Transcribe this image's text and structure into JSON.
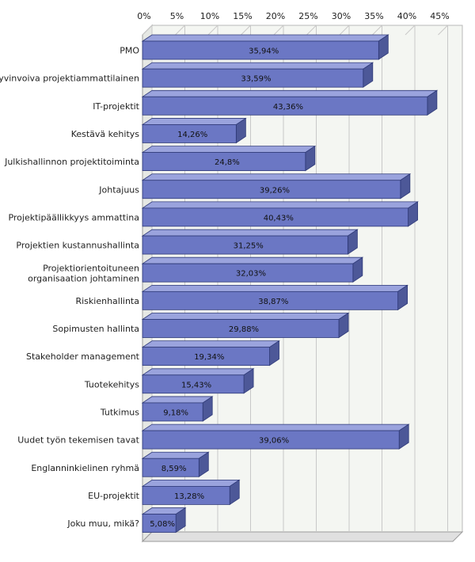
{
  "chart_data": {
    "type": "bar",
    "orientation": "horizontal",
    "categories": [
      "PMO",
      "Hyvinvoiva projektiammattilainen",
      "IT-projektit",
      "Kestävä kehitys",
      "Julkishallinnon projektitoiminta",
      "Johtajuus",
      "Projektipäällikkyys ammattina",
      "Projektien kustannushallinta",
      "Projektiorientoituneen organisaation johtaminen",
      "Riskienhallinta",
      "Sopimusten hallinta",
      "Stakeholder management",
      "Tuotekehitys",
      "Tutkimus",
      "Uudet työn tekemisen tavat",
      "Englanninkielinen ryhmä",
      "EU-projektit",
      "Joku muu, mikä?"
    ],
    "category_lines": [
      [
        "PMO"
      ],
      [
        "Hyvinvoiva projektiammattilainen"
      ],
      [
        "IT-projektit"
      ],
      [
        "Kestävä kehitys"
      ],
      [
        "Julkishallinnon projektitoiminta"
      ],
      [
        "Johtajuus"
      ],
      [
        "Projektipäällikkyys ammattina"
      ],
      [
        "Projektien kustannushallinta"
      ],
      [
        "Projektiorientoituneen",
        "organisaation johtaminen"
      ],
      [
        "Riskienhallinta"
      ],
      [
        "Sopimusten hallinta"
      ],
      [
        "Stakeholder management"
      ],
      [
        "Tuotekehitys"
      ],
      [
        "Tutkimus"
      ],
      [
        "Uudet työn tekemisen tavat"
      ],
      [
        "Englanninkielinen ryhmä"
      ],
      [
        "EU-projektit"
      ],
      [
        "Joku muu, mikä?"
      ]
    ],
    "values": [
      35.94,
      33.59,
      43.36,
      14.26,
      24.8,
      39.26,
      40.43,
      31.25,
      32.03,
      38.87,
      29.88,
      19.34,
      15.43,
      9.18,
      39.06,
      8.59,
      13.28,
      5.08
    ],
    "data_labels": [
      "35,94%",
      "33,59%",
      "43,36%",
      "14,26%",
      "24,8%",
      "39,26%",
      "40,43%",
      "31,25%",
      "32,03%",
      "38,87%",
      "29,88%",
      "19,34%",
      "15,43%",
      "9,18%",
      "39,06%",
      "8,59%",
      "13,28%",
      "5,08%"
    ],
    "x_ticks": [
      0,
      5,
      10,
      15,
      20,
      25,
      30,
      35,
      40,
      45
    ],
    "x_tick_labels": [
      "0%",
      "5%",
      "10%",
      "15%",
      "20%",
      "25%",
      "30%",
      "35%",
      "40%",
      "45%"
    ],
    "xlim": [
      0,
      45
    ],
    "grid": true,
    "legend": "none",
    "title": "",
    "xlabel": "",
    "ylabel": "",
    "colors": {
      "bar_front": "#6b77c4",
      "bar_top": "#9aa3dd",
      "bar_side": "#4d5898",
      "bar_stroke": "#2f3a78",
      "plot_back": "#f4f6f2",
      "plot_floor": "#e0e0e0",
      "grid": "#c8c8c8",
      "text": "#222222"
    }
  }
}
